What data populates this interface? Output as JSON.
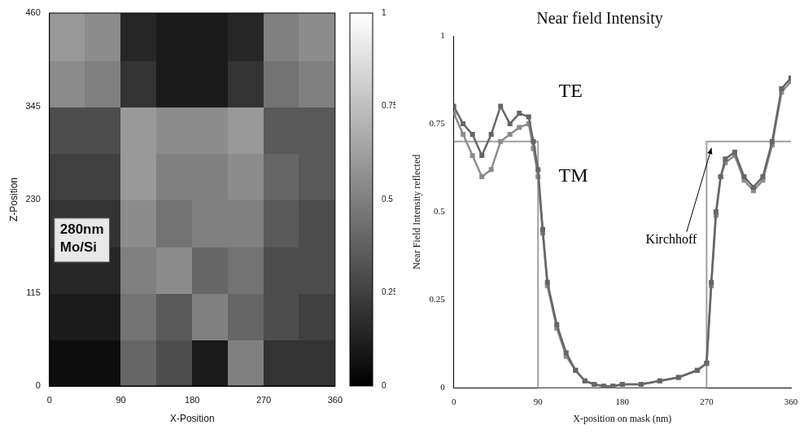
{
  "chart_data": [
    {
      "type": "heatmap",
      "x_label": "X-Position",
      "y_label": "Z-Position",
      "xlim": [
        0,
        360
      ],
      "xticks": [
        0,
        90,
        180,
        270,
        360
      ],
      "ylim": [
        0,
        460
      ],
      "yticks": [
        0,
        115,
        230,
        345,
        460
      ],
      "x_bins": [
        0,
        45,
        90,
        135,
        180,
        225,
        270,
        315,
        360
      ],
      "y_bins": [
        0,
        57.5,
        115,
        172.5,
        230,
        287.5,
        345,
        402.5,
        460
      ],
      "cells": [
        [
          0.05,
          0.05,
          0.4,
          0.3,
          0.1,
          0.5,
          0.2,
          0.2
        ],
        [
          0.1,
          0.1,
          0.45,
          0.35,
          0.5,
          0.4,
          0.3,
          0.25
        ],
        [
          0.15,
          0.15,
          0.5,
          0.55,
          0.4,
          0.45,
          0.3,
          0.3
        ],
        [
          0.2,
          0.2,
          0.55,
          0.45,
          0.5,
          0.5,
          0.35,
          0.3
        ],
        [
          0.25,
          0.25,
          0.6,
          0.5,
          0.5,
          0.55,
          0.4,
          0.35
        ],
        [
          0.3,
          0.3,
          0.6,
          0.55,
          0.55,
          0.6,
          0.35,
          0.35
        ],
        [
          0.55,
          0.5,
          0.2,
          0.1,
          0.1,
          0.2,
          0.45,
          0.5
        ],
        [
          0.6,
          0.55,
          0.15,
          0.1,
          0.1,
          0.15,
          0.5,
          0.55
        ]
      ],
      "colorbar_range": [
        0,
        1
      ],
      "colorbar_ticks": [
        0,
        0.25,
        0.5,
        0.75,
        1
      ],
      "annotations": [
        "280nm Mo/Si"
      ]
    },
    {
      "type": "line",
      "title": "Near field Intensity",
      "x_label": "X-position on mask (nm)",
      "y_label": "Near Field Intensity reflected",
      "xlim": [
        0,
        360
      ],
      "xticks": [
        0,
        90,
        180,
        270,
        360
      ],
      "ylim": [
        0,
        1
      ],
      "yticks": [
        0,
        0.25,
        0.5,
        0.75,
        1
      ],
      "grid": false,
      "series": [
        {
          "name": "TE",
          "color": "#666666",
          "marker": "square",
          "line_style": "solid",
          "x": [
            0,
            10,
            20,
            30,
            40,
            50,
            60,
            70,
            80,
            85,
            90,
            95,
            100,
            110,
            120,
            130,
            140,
            150,
            160,
            170,
            180,
            200,
            220,
            240,
            260,
            270,
            275,
            280,
            285,
            290,
            300,
            310,
            320,
            330,
            340,
            350,
            360
          ],
          "values": [
            0.8,
            0.75,
            0.72,
            0.66,
            0.72,
            0.8,
            0.75,
            0.78,
            0.77,
            0.7,
            0.62,
            0.45,
            0.3,
            0.18,
            0.1,
            0.05,
            0.02,
            0.01,
            0.005,
            0.005,
            0.01,
            0.01,
            0.02,
            0.03,
            0.05,
            0.07,
            0.3,
            0.5,
            0.6,
            0.65,
            0.67,
            0.6,
            0.57,
            0.6,
            0.7,
            0.85,
            0.88
          ]
        },
        {
          "name": "TM",
          "color": "#8c8c8c",
          "marker": "square",
          "line_style": "solid",
          "x": [
            0,
            10,
            20,
            30,
            40,
            50,
            60,
            70,
            80,
            85,
            90,
            95,
            100,
            110,
            120,
            130,
            140,
            150,
            160,
            170,
            180,
            200,
            220,
            240,
            260,
            270,
            275,
            280,
            285,
            290,
            300,
            310,
            320,
            330,
            340,
            350,
            360
          ],
          "values": [
            0.78,
            0.72,
            0.66,
            0.6,
            0.62,
            0.7,
            0.72,
            0.74,
            0.75,
            0.68,
            0.6,
            0.44,
            0.29,
            0.17,
            0.09,
            0.05,
            0.02,
            0.01,
            0.005,
            0.005,
            0.01,
            0.01,
            0.02,
            0.03,
            0.05,
            0.07,
            0.29,
            0.49,
            0.6,
            0.64,
            0.66,
            0.59,
            0.56,
            0.59,
            0.69,
            0.84,
            0.87
          ]
        },
        {
          "name": "Kirchhoff",
          "color": "#a0a0a0",
          "marker": "none",
          "line_style": "solid",
          "x": [
            0,
            90,
            90,
            270,
            270,
            360
          ],
          "values": [
            0.7,
            0.7,
            0,
            0,
            0.7,
            0.7
          ]
        }
      ]
    }
  ]
}
